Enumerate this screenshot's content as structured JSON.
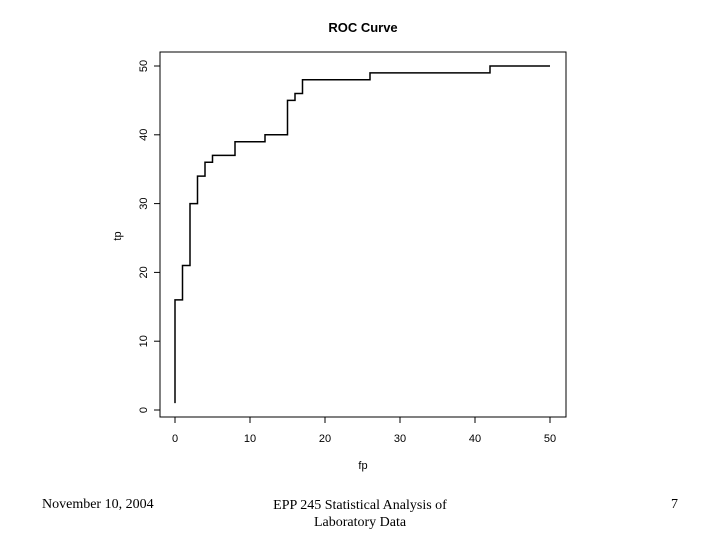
{
  "chart_data": {
    "type": "line",
    "title": "ROC Curve",
    "xlabel": "fp",
    "ylabel": "tp",
    "xlim": [
      0,
      50
    ],
    "ylim": [
      0,
      50
    ],
    "xticks": [
      0,
      10,
      20,
      30,
      40,
      50
    ],
    "yticks": [
      0,
      10,
      20,
      30,
      40,
      50
    ],
    "grid": false,
    "series": [
      {
        "x": [
          0,
          0,
          1,
          1,
          2,
          2,
          3,
          3,
          4,
          4,
          5,
          5,
          8,
          8,
          12,
          12,
          15,
          15,
          16,
          16,
          17,
          17,
          26,
          26,
          42,
          42,
          50
        ],
        "y": [
          1,
          16,
          16,
          21,
          21,
          30,
          30,
          34,
          34,
          36,
          36,
          37,
          37,
          39,
          39,
          40,
          40,
          45,
          45,
          46,
          46,
          48,
          48,
          49,
          49,
          50,
          50
        ]
      }
    ]
  },
  "footer": {
    "date": "November 10, 2004",
    "course_line1": "EPP 245 Statistical Analysis of",
    "course_line2": "Laboratory Data",
    "page": "7"
  }
}
